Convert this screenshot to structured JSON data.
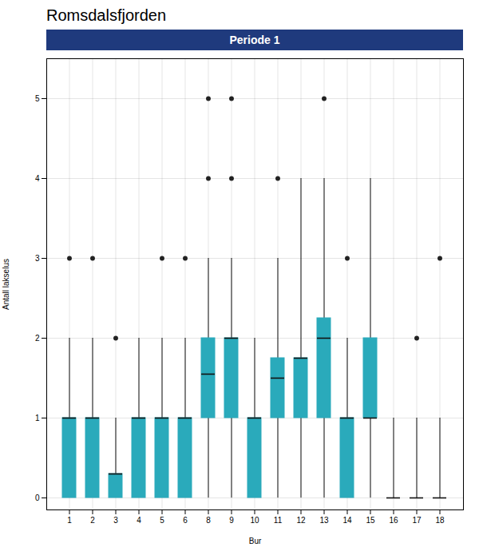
{
  "chart_data": {
    "type": "box",
    "title": "Romsdalsfjorden",
    "annotations": [
      "Periode 1"
    ],
    "xlabel": "Bur",
    "ylabel": "Antall lakselus",
    "ylim": [
      -0.15,
      5.5
    ],
    "yticks": [
      0,
      1,
      2,
      3,
      4,
      5
    ],
    "grid": true,
    "color": "#2AAABB",
    "categories": [
      "1",
      "2",
      "3",
      "4",
      "5",
      "6",
      "8",
      "9",
      "10",
      "11",
      "12",
      "13",
      "14",
      "15",
      "16",
      "17",
      "18"
    ],
    "boxes": [
      {
        "q1": 0.0,
        "median": 1.0,
        "q3": 1.0,
        "whislo": 0.0,
        "whishi": 2.0,
        "fliers": [
          3.0
        ]
      },
      {
        "q1": 0.0,
        "median": 1.0,
        "q3": 1.0,
        "whislo": 0.0,
        "whishi": 2.0,
        "fliers": [
          3.0
        ]
      },
      {
        "q1": 0.0,
        "median": 0.3,
        "q3": 0.3,
        "whislo": 0.0,
        "whishi": 1.0,
        "fliers": [
          2.0
        ]
      },
      {
        "q1": 0.0,
        "median": 1.0,
        "q3": 1.0,
        "whislo": 0.0,
        "whishi": 2.0,
        "fliers": []
      },
      {
        "q1": 0.0,
        "median": 1.0,
        "q3": 1.0,
        "whislo": 0.0,
        "whishi": 2.0,
        "fliers": [
          3.0
        ]
      },
      {
        "q1": 0.0,
        "median": 1.0,
        "q3": 1.0,
        "whislo": 0.0,
        "whishi": 2.0,
        "fliers": [
          3.0
        ]
      },
      {
        "q1": 1.0,
        "median": 1.55,
        "q3": 2.0,
        "whislo": 0.0,
        "whishi": 3.0,
        "fliers": [
          4.0,
          5.0
        ]
      },
      {
        "q1": 1.0,
        "median": 2.0,
        "q3": 2.0,
        "whislo": 0.0,
        "whishi": 3.0,
        "fliers": [
          4.0,
          5.0
        ]
      },
      {
        "q1": 0.0,
        "median": 1.0,
        "q3": 1.0,
        "whislo": 0.0,
        "whishi": 2.0,
        "fliers": []
      },
      {
        "q1": 1.0,
        "median": 1.5,
        "q3": 1.75,
        "whislo": 0.0,
        "whishi": 3.0,
        "fliers": [
          4.0
        ]
      },
      {
        "q1": 1.0,
        "median": 1.75,
        "q3": 1.75,
        "whislo": 0.0,
        "whishi": 4.0,
        "fliers": []
      },
      {
        "q1": 1.0,
        "median": 2.0,
        "q3": 2.25,
        "whislo": 0.0,
        "whishi": 4.0,
        "fliers": [
          5.0
        ]
      },
      {
        "q1": 0.0,
        "median": 1.0,
        "q3": 1.0,
        "whislo": 0.0,
        "whishi": 2.0,
        "fliers": [
          3.0
        ]
      },
      {
        "q1": 1.0,
        "median": 1.0,
        "q3": 2.0,
        "whislo": 0.0,
        "whishi": 4.0,
        "fliers": []
      },
      {
        "q1": 0.0,
        "median": 0.0,
        "q3": 0.0,
        "whislo": 0.0,
        "whishi": 1.0,
        "fliers": []
      },
      {
        "q1": 0.0,
        "median": 0.0,
        "q3": 0.0,
        "whislo": 0.0,
        "whishi": 1.0,
        "fliers": [
          2.0
        ]
      },
      {
        "q1": 0.0,
        "median": 0.0,
        "q3": 0.0,
        "whislo": 0.0,
        "whishi": 1.0,
        "fliers": [
          3.0
        ]
      }
    ]
  }
}
